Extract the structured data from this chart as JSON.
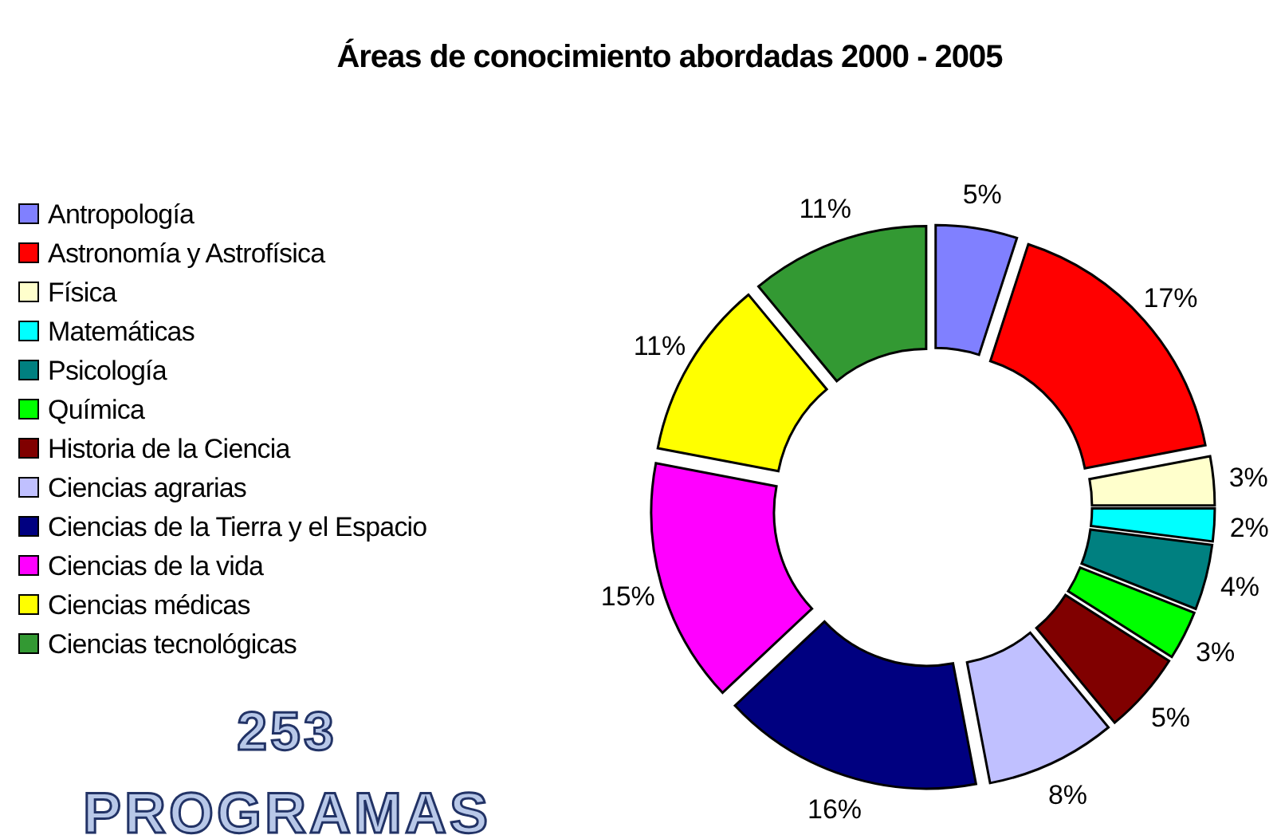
{
  "chart_data": {
    "type": "donut",
    "title": "Áreas de conocimiento abordadas 2000 - 2005",
    "categories": [
      "Antropología",
      "Astronomía y Astrofísica",
      "Física",
      "Matemáticas",
      "Psicología",
      "Química",
      "Historia de la Ciencia",
      "Ciencias agrarias",
      "Ciencias de la Tierra y el Espacio",
      "Ciencias de la vida",
      "Ciencias médicas",
      "Ciencias tecnológicas"
    ],
    "values": [
      5,
      17,
      3,
      2,
      4,
      3,
      5,
      8,
      16,
      15,
      11,
      11
    ],
    "value_labels": [
      "5%",
      "17%",
      "3%",
      "2%",
      "4%",
      "3%",
      "5%",
      "8%",
      "16%",
      "15%",
      "11%",
      "11%"
    ],
    "colors": [
      "#8080ff",
      "#ff0000",
      "#ffffcc",
      "#00ffff",
      "#008080",
      "#00ff00",
      "#800000",
      "#c0c0ff",
      "#000080",
      "#ff00ff",
      "#ffff00",
      "#339933"
    ],
    "legend": "left",
    "annotations": [
      "253",
      "PROGRAMAS"
    ]
  }
}
